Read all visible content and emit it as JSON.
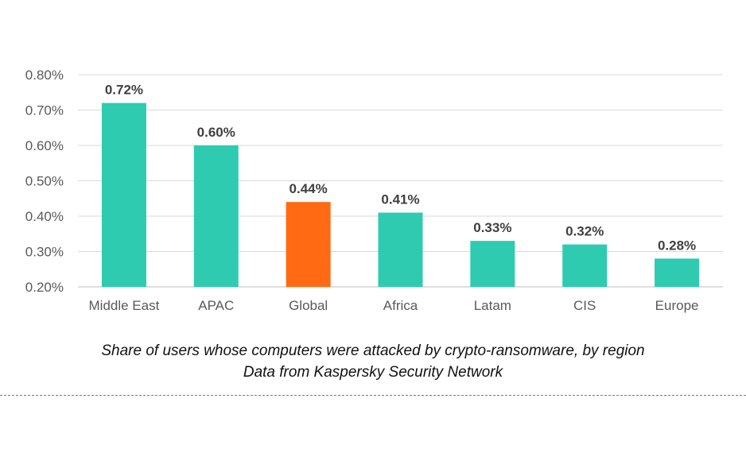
{
  "chart_data": {
    "type": "bar",
    "categories": [
      "Middle East",
      "APAC",
      "Global",
      "Africa",
      "Latam",
      "CIS",
      "Europe"
    ],
    "values": [
      0.72,
      0.6,
      0.44,
      0.41,
      0.33,
      0.32,
      0.28
    ],
    "value_labels": [
      "0.72%",
      "0.60%",
      "0.44%",
      "0.41%",
      "0.33%",
      "0.32%",
      "0.28%"
    ],
    "bar_colors": [
      "#2ecbb1",
      "#2ecbb1",
      "#ff6a13",
      "#2ecbb1",
      "#2ecbb1",
      "#2ecbb1",
      "#2ecbb1"
    ],
    "ylim": [
      0.2,
      0.8
    ],
    "yticks": [
      0.2,
      0.3,
      0.4,
      0.5,
      0.6,
      0.7,
      0.8
    ],
    "ytick_labels": [
      "0.20%",
      "0.30%",
      "0.40%",
      "0.50%",
      "0.60%",
      "0.70%",
      "0.80%"
    ],
    "grid": true,
    "title": "",
    "xlabel": "",
    "ylabel": ""
  },
  "caption": {
    "line1": "Share of users whose computers were attacked by crypto-ransomware, by region",
    "line2": "Data from Kaspersky Security Network"
  },
  "colors": {
    "region_bar": "#2ecbb1",
    "global_bar": "#ff6a13",
    "grid": "#d9d9d9",
    "separator": "#d9534f"
  }
}
